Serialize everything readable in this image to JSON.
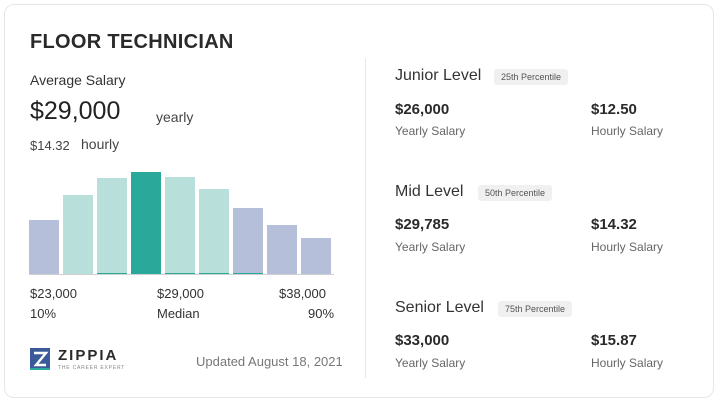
{
  "job_title": "FLOOR TECHNICIAN",
  "average": {
    "label": "Average Salary",
    "salary": "$29,000",
    "period": "yearly",
    "hourly": "$14.32",
    "hourly_period": "hourly"
  },
  "chart_data": {
    "type": "bar",
    "values": [
      52,
      76,
      92,
      98,
      93,
      82,
      64,
      48,
      35
    ],
    "colors": [
      "#b5bfd9",
      "#b8dfda",
      "#b8dfda",
      "#2aa89a",
      "#b8dfda",
      "#b8dfda",
      "#b5bfd9",
      "#b5bfd9",
      "#b5bfd9"
    ],
    "accents": [
      false,
      false,
      true,
      false,
      true,
      true,
      true,
      false,
      false
    ],
    "ylim": [
      0,
      100
    ],
    "axis": {
      "low_value": "$23,000",
      "low_pct": "10%",
      "mid_value": "$29,000",
      "mid_pct": "Median",
      "high_value": "$38,000",
      "high_pct": "90%"
    }
  },
  "footer": {
    "brand": "ZIPPIA",
    "tagline": "THE CAREER EXPERT",
    "updated": "Updated August 18, 2021"
  },
  "levels": [
    {
      "name": "Junior Level",
      "percentile": "25th Percentile",
      "yearly_value": "$26,000",
      "yearly_label": "Yearly Salary",
      "hourly_value": "$12.50",
      "hourly_label": "Hourly Salary"
    },
    {
      "name": "Mid Level",
      "percentile": "50th Percentile",
      "yearly_value": "$29,785",
      "yearly_label": "Yearly Salary",
      "hourly_value": "$14.32",
      "hourly_label": "Hourly Salary"
    },
    {
      "name": "Senior Level",
      "percentile": "75th Percentile",
      "yearly_value": "$33,000",
      "yearly_label": "Yearly Salary",
      "hourly_value": "$15.87",
      "hourly_label": "Hourly Salary"
    }
  ],
  "colors": {
    "accent": "#2aa89a",
    "brand_blue": "#3a5a99"
  }
}
